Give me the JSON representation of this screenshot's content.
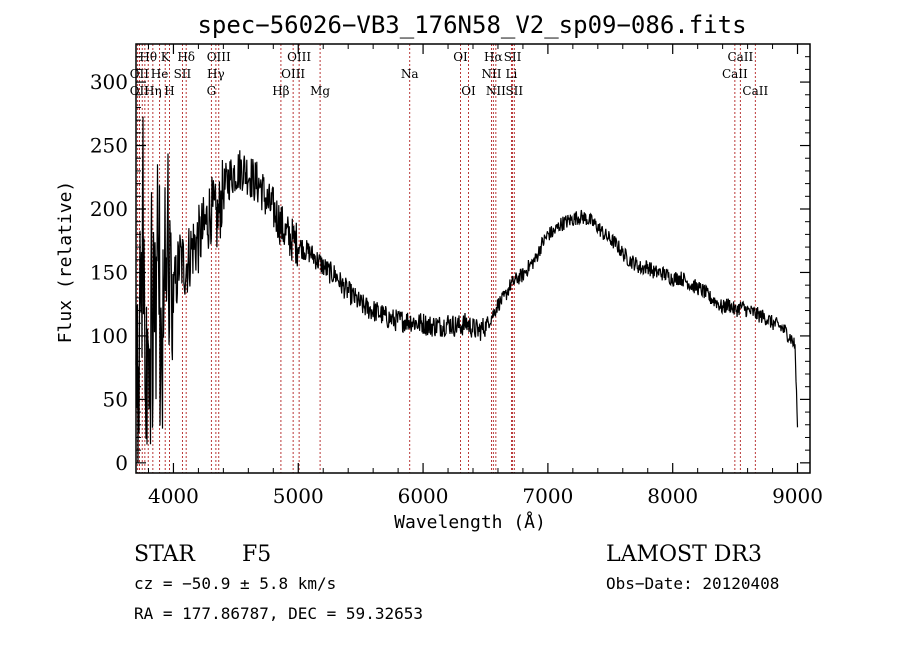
{
  "chart_data": {
    "type": "line",
    "title": "spec−56026−VB3_176N58_V2_sp09−086.fits",
    "xlabel": "Wavelength (Å)",
    "ylabel": "Flux (relative)",
    "xlim": [
      3700,
      9100
    ],
    "ylim": [
      -8,
      330
    ],
    "xticks": [
      4000,
      5000,
      6000,
      7000,
      8000,
      9000
    ],
    "yticks": [
      0,
      50,
      100,
      150,
      200,
      250,
      300
    ],
    "grid": false,
    "colors": {
      "spectrum": "#000000",
      "lines": "#b22222"
    },
    "series": [
      {
        "name": "flux",
        "x": [
          3700,
          3750,
          3800,
          3850,
          3900,
          3950,
          4000,
          4050,
          4100,
          4150,
          4200,
          4250,
          4300,
          4350,
          4400,
          4450,
          4500,
          4550,
          4600,
          4650,
          4700,
          4750,
          4800,
          4850,
          4900,
          4950,
          5000,
          5050,
          5100,
          5150,
          5200,
          5250,
          5300,
          5350,
          5400,
          5450,
          5500,
          5550,
          5600,
          5650,
          5700,
          5750,
          5800,
          5850,
          5900,
          5950,
          6000,
          6050,
          6100,
          6150,
          6200,
          6250,
          6300,
          6350,
          6400,
          6450,
          6500,
          6550,
          6600,
          6650,
          6700,
          6750,
          6800,
          6850,
          6900,
          6950,
          7000,
          7050,
          7100,
          7150,
          7200,
          7250,
          7300,
          7350,
          7400,
          7450,
          7500,
          7550,
          7600,
          7650,
          7700,
          7750,
          7800,
          7850,
          7900,
          7950,
          8000,
          8050,
          8100,
          8150,
          8200,
          8250,
          8300,
          8350,
          8400,
          8450,
          8500,
          8550,
          8600,
          8650,
          8700,
          8750,
          8800,
          8850,
          8900,
          8950,
          8980,
          9000
        ],
        "y": [
          60,
          180,
          90,
          160,
          100,
          150,
          130,
          160,
          155,
          170,
          175,
          185,
          200,
          190,
          215,
          225,
          230,
          232,
          228,
          222,
          218,
          205,
          200,
          190,
          180,
          176,
          172,
          168,
          165,
          160,
          155,
          150,
          148,
          140,
          135,
          130,
          125,
          122,
          120,
          118,
          115,
          113,
          112,
          112,
          112,
          110,
          110,
          108,
          108,
          108,
          110,
          108,
          108,
          110,
          106,
          104,
          108,
          115,
          125,
          130,
          140,
          145,
          148,
          155,
          160,
          172,
          180,
          182,
          188,
          190,
          192,
          194,
          193,
          190,
          186,
          180,
          176,
          172,
          165,
          160,
          157,
          153,
          155,
          150,
          150,
          148,
          145,
          146,
          144,
          140,
          138,
          135,
          130,
          127,
          122,
          125,
          120,
          123,
          120,
          118,
          116,
          114,
          110,
          108,
          104,
          98,
          92,
          28
        ]
      }
    ],
    "spectral_lines": [
      {
        "name": "Hθ",
        "x": 3798,
        "row": 1
      },
      {
        "name": "K",
        "x": 3934,
        "row": 1
      },
      {
        "name": "Hδ",
        "x": 4102,
        "row": 1
      },
      {
        "name": "OIII",
        "x": 4363,
        "row": 1
      },
      {
        "name": "OIII",
        "x": 5007,
        "row": 1
      },
      {
        "name": "OI",
        "x": 6300,
        "row": 1
      },
      {
        "name": "Hα",
        "x": 6563,
        "row": 1
      },
      {
        "name": "SII",
        "x": 6717,
        "row": 1
      },
      {
        "name": "CaII",
        "x": 8542,
        "row": 1
      },
      {
        "name": "OII",
        "x": 3727,
        "row": 2
      },
      {
        "name": "He",
        "x": 3889,
        "row": 2
      },
      {
        "name": "SII",
        "x": 4072,
        "row": 2
      },
      {
        "name": "Hγ",
        "x": 4340,
        "row": 2
      },
      {
        "name": "OIII",
        "x": 4959,
        "row": 2
      },
      {
        "name": "Na",
        "x": 5893,
        "row": 2
      },
      {
        "name": "NII",
        "x": 6548,
        "row": 2
      },
      {
        "name": "Li",
        "x": 6708,
        "row": 2
      },
      {
        "name": "CaII",
        "x": 8498,
        "row": 2
      },
      {
        "name": "OII",
        "x": 3727,
        "row": 3
      },
      {
        "name": "Hη",
        "x": 3835,
        "row": 3
      },
      {
        "name": "H",
        "x": 3968,
        "row": 3
      },
      {
        "name": "G",
        "x": 4304,
        "row": 3
      },
      {
        "name": "Hβ",
        "x": 4861,
        "row": 3
      },
      {
        "name": "Mg",
        "x": 5175,
        "row": 3
      },
      {
        "name": "OI",
        "x": 6364,
        "row": 3
      },
      {
        "name": "NII",
        "x": 6583,
        "row": 3
      },
      {
        "name": "SII",
        "x": 6731,
        "row": 3
      },
      {
        "name": "CaII",
        "x": 8662,
        "row": 3
      },
      {
        "name": "",
        "x": 3711,
        "row": 0
      },
      {
        "name": "",
        "x": 3750,
        "row": 0
      },
      {
        "name": "",
        "x": 3771,
        "row": 0
      }
    ]
  },
  "info": {
    "class": "STAR",
    "subclass": "F5",
    "cz": "cz = −50.9 ± 5.8 km/s",
    "coords": "RA = 177.86787, DEC =  59.32653",
    "survey": "LAMOST DR3",
    "obs_date": "Obs−Date: 20120408"
  }
}
